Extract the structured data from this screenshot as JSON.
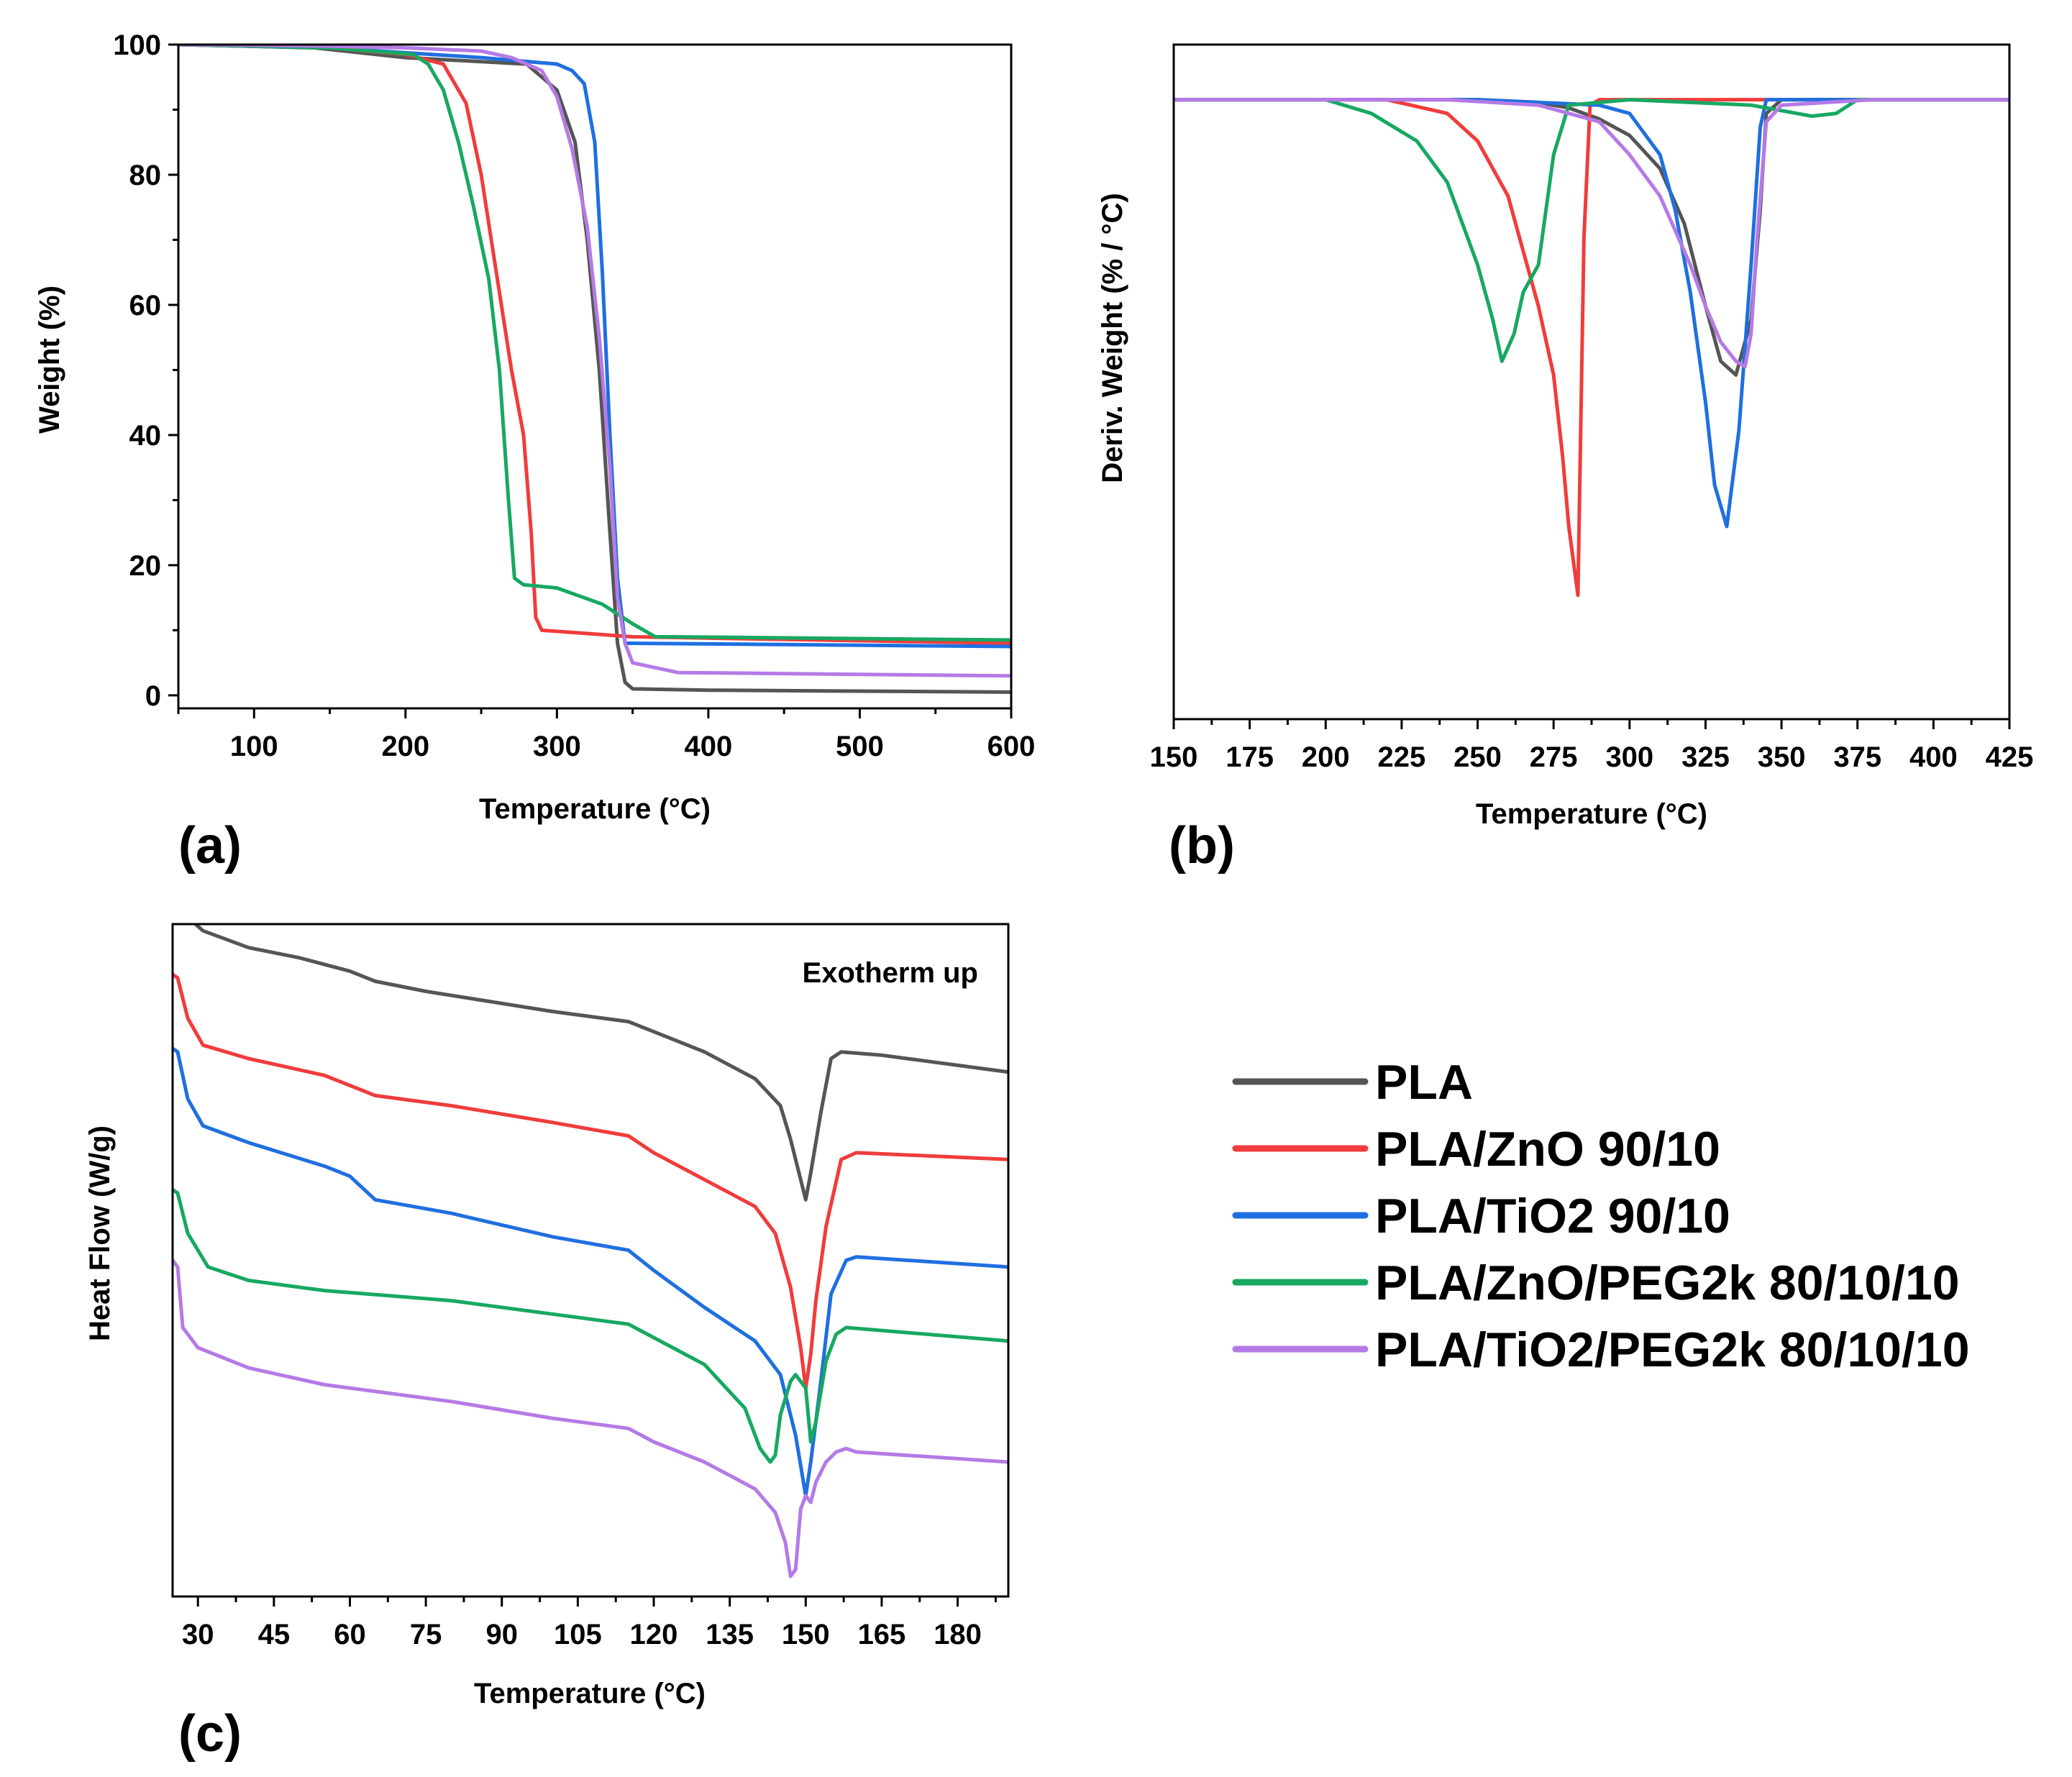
{
  "colors": {
    "PLA": "#555555",
    "PLA/ZnO 90/10": "#f03c3c",
    "PLA/TiO2 90/10": "#1f6fe0",
    "PLA/ZnO/PEG2k 80/10/10": "#17a862",
    "PLA/TiO2/PEG2k 80/10/10": "#b57ae6"
  },
  "legend": {
    "entries": [
      "PLA",
      "PLA/ZnO 90/10",
      "PLA/TiO2 90/10",
      "PLA/ZnO/PEG2k 80/10/10",
      "PLA/TiO2/PEG2k 80/10/10"
    ]
  },
  "chart_data": [
    {
      "panel": "(a)",
      "type": "line",
      "xlabel": "Temperature (°C)",
      "ylabel": "Weight (%)",
      "xlim": [
        50,
        600
      ],
      "ylim": [
        -2,
        100
      ],
      "xticks": [
        100,
        200,
        300,
        400,
        500,
        600
      ],
      "yticks": [
        0,
        20,
        40,
        60,
        80,
        100
      ],
      "series": [
        {
          "name": "PLA",
          "x": [
            50,
            140,
            200,
            280,
            300,
            312,
            320,
            328,
            335,
            340,
            345,
            350,
            400,
            600
          ],
          "y": [
            100,
            99.5,
            98,
            97,
            93,
            85,
            70,
            50,
            25,
            8,
            2,
            1,
            0.8,
            0.5
          ]
        },
        {
          "name": "PLA/ZnO 90/10",
          "x": [
            50,
            150,
            200,
            225,
            240,
            250,
            260,
            270,
            278,
            283,
            286,
            290,
            350,
            600
          ],
          "y": [
            100,
            99.5,
            98.5,
            97,
            91,
            80,
            65,
            50,
            40,
            25,
            12,
            10,
            9,
            8
          ]
        },
        {
          "name": "PLA/TiO2 90/10",
          "x": [
            50,
            150,
            250,
            300,
            310,
            318,
            325,
            330,
            335,
            340,
            345,
            350,
            600
          ],
          "y": [
            100,
            99.5,
            98,
            97,
            96,
            94,
            85,
            65,
            40,
            18,
            8,
            8,
            7.5
          ]
        },
        {
          "name": "PLA/ZnO/PEG2k 80/10/10",
          "x": [
            50,
            150,
            205,
            215,
            225,
            235,
            245,
            255,
            262,
            268,
            272,
            278,
            300,
            330,
            350,
            365,
            375,
            600
          ],
          "y": [
            100,
            99.5,
            98.5,
            97,
            93,
            85,
            75,
            64,
            50,
            30,
            18,
            17,
            16.5,
            14,
            11,
            9,
            9,
            8.5
          ]
        },
        {
          "name": "PLA/TiO2/PEG2k 80/10/10",
          "x": [
            50,
            140,
            200,
            250,
            270,
            290,
            300,
            310,
            320,
            328,
            335,
            340,
            345,
            350,
            370,
            380,
            600
          ],
          "y": [
            100,
            99.8,
            99.5,
            99,
            98,
            96,
            92,
            84,
            72,
            55,
            35,
            15,
            8,
            5,
            4,
            3.5,
            3
          ]
        }
      ]
    },
    {
      "panel": "(b)",
      "type": "line",
      "xlabel": "Temperature (°C)",
      "ylabel": "Deriv. Weight (% / °C)",
      "xlim": [
        150,
        425
      ],
      "ylim": [
        -2.25,
        0.2
      ],
      "xticks": [
        150,
        175,
        200,
        225,
        250,
        275,
        300,
        325,
        350,
        375,
        400,
        425
      ],
      "series": [
        {
          "name": "PLA",
          "x": [
            150,
            250,
            270,
            280,
            290,
            300,
            310,
            318,
            325,
            330,
            335,
            340,
            343,
            345,
            350,
            425
          ],
          "y": [
            0,
            0,
            -0.01,
            -0.03,
            -0.07,
            -0.13,
            -0.25,
            -0.45,
            -0.75,
            -0.95,
            -1.0,
            -0.8,
            -0.4,
            -0.05,
            0,
            0
          ]
        },
        {
          "name": "PLA/ZnO 90/10",
          "x": [
            150,
            220,
            240,
            250,
            260,
            265,
            270,
            275,
            278,
            280,
            283,
            285,
            287,
            290,
            300,
            425
          ],
          "y": [
            0,
            0,
            -0.05,
            -0.15,
            -0.35,
            -0.55,
            -0.75,
            -1.0,
            -1.3,
            -1.55,
            -1.8,
            -0.5,
            -0.02,
            0,
            0,
            0
          ]
        },
        {
          "name": "PLA/TiO2 90/10",
          "x": [
            150,
            250,
            290,
            300,
            310,
            315,
            320,
            325,
            328,
            332,
            336,
            340,
            343,
            345,
            350,
            425
          ],
          "y": [
            0,
            0,
            -0.02,
            -0.05,
            -0.2,
            -0.4,
            -0.7,
            -1.1,
            -1.4,
            -1.55,
            -1.2,
            -0.6,
            -0.1,
            0,
            0,
            0
          ]
        },
        {
          "name": "PLA/ZnO/PEG2k 80/10/10",
          "x": [
            150,
            200,
            215,
            230,
            240,
            250,
            255,
            258,
            262,
            265,
            270,
            275,
            280,
            300,
            340,
            360,
            368,
            375,
            425
          ],
          "y": [
            0,
            0,
            -0.05,
            -0.15,
            -0.3,
            -0.6,
            -0.8,
            -0.95,
            -0.85,
            -0.7,
            -0.6,
            -0.2,
            -0.02,
            0,
            -0.02,
            -0.06,
            -0.05,
            0,
            0
          ]
        },
        {
          "name": "PLA/TiO2/PEG2k 80/10/10",
          "x": [
            150,
            240,
            270,
            290,
            300,
            310,
            320,
            325,
            330,
            335,
            338,
            340,
            342,
            345,
            350,
            380,
            425
          ],
          "y": [
            0,
            0,
            -0.02,
            -0.08,
            -0.2,
            -0.35,
            -0.6,
            -0.75,
            -0.88,
            -0.95,
            -0.97,
            -0.85,
            -0.5,
            -0.08,
            -0.02,
            0,
            0
          ]
        }
      ]
    },
    {
      "panel": "(c)",
      "type": "line",
      "xlabel": "Temperature (°C)",
      "ylabel": "Heat Flow (W/g)",
      "annotation": "Exotherm up",
      "xlim": [
        25,
        190
      ],
      "ylim": [
        0,
        100
      ],
      "xticks": [
        30,
        45,
        60,
        75,
        90,
        105,
        120,
        135,
        150,
        165,
        180
      ],
      "series": [
        {
          "name": "PLA",
          "x": [
            25,
            28,
            31,
            40,
            50,
            60,
            65,
            75,
            100,
            115,
            120,
            130,
            140,
            145,
            147,
            149,
            150,
            151,
            153,
            155,
            157,
            165,
            190
          ],
          "y": [
            104,
            101,
            99,
            96.5,
            95,
            93,
            91.5,
            90,
            87,
            85.5,
            84,
            81,
            77,
            73,
            68,
            62,
            59,
            63,
            72,
            80,
            81,
            80.5,
            78
          ]
        },
        {
          "name": "PLA/ZnO 90/10",
          "x": [
            25,
            26,
            28,
            31,
            40,
            55,
            65,
            80,
            100,
            115,
            120,
            130,
            140,
            144,
            147,
            149,
            150,
            151,
            152,
            154,
            157,
            160,
            190
          ],
          "y": [
            92.5,
            92,
            86,
            82,
            80,
            77.5,
            74.5,
            73,
            70.5,
            68.5,
            66,
            62,
            58,
            54,
            46,
            37,
            31,
            36,
            44,
            55,
            65,
            66,
            65
          ]
        },
        {
          "name": "PLA/TiO2 90/10",
          "x": [
            25,
            26,
            28,
            31,
            40,
            55,
            60,
            65,
            80,
            100,
            115,
            120,
            130,
            140,
            145,
            148,
            150,
            151,
            153,
            155,
            158,
            160,
            190
          ],
          "y": [
            81.5,
            81,
            74,
            70,
            67.5,
            64,
            62.5,
            59,
            57,
            53.5,
            51.5,
            48.5,
            43,
            38,
            33,
            24,
            15,
            20,
            32,
            45,
            50,
            50.5,
            49
          ]
        },
        {
          "name": "PLA/ZnO/PEG2k 80/10/10",
          "x": [
            25,
            26,
            28,
            32,
            40,
            55,
            80,
            100,
            115,
            120,
            130,
            138,
            141,
            143,
            144,
            145,
            147,
            148,
            150,
            151,
            152,
            154,
            156,
            158,
            190
          ],
          "y": [
            60.5,
            60,
            54,
            49,
            47,
            45.5,
            44,
            42,
            40.5,
            38.5,
            34.5,
            28,
            22,
            20,
            21,
            27,
            32,
            33,
            31,
            23,
            26,
            35,
            39,
            40,
            38
          ]
        },
        {
          "name": "PLA/TiO2/PEG2k 80/10/10",
          "x": [
            25,
            26,
            27,
            30,
            40,
            55,
            80,
            100,
            115,
            120,
            130,
            140,
            144,
            146,
            147,
            148,
            149,
            150,
            151,
            152,
            154,
            156,
            158,
            160,
            190
          ],
          "y": [
            50,
            49,
            40,
            37,
            34,
            31.5,
            29,
            26.5,
            25,
            23,
            20,
            16,
            12.5,
            8,
            3,
            4,
            13,
            15,
            14,
            17,
            20,
            21.5,
            22,
            21.5,
            20
          ]
        }
      ]
    }
  ]
}
